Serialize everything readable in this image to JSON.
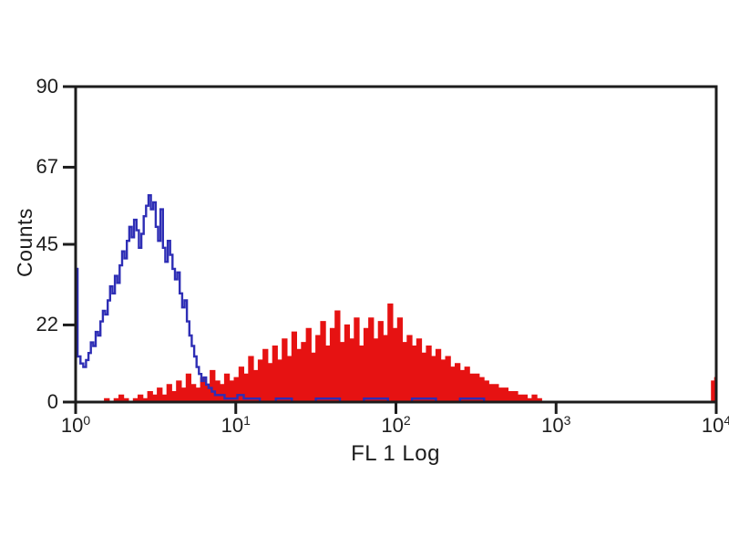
{
  "figure": {
    "ylabel": "Counts",
    "xlabel": "FL 1 Log",
    "background_color": "#ffffff",
    "axis_color": "#1c1c1c",
    "text_color": "#1c1c1c"
  },
  "chart_data": {
    "type": "area",
    "subtype": "flow-cytometry-overlay-histogram",
    "title": "",
    "xlabel": "FL 1 Log",
    "ylabel": "Counts",
    "x_scale": "log10",
    "xlim_log": [
      0,
      4
    ],
    "ylim": [
      0,
      90
    ],
    "x_tick_base": "10",
    "x_tick_exponents": [
      0,
      1,
      2,
      3,
      4
    ],
    "y_ticks": [
      0,
      22,
      45,
      67,
      90
    ],
    "grid": false,
    "legend": "none",
    "series": [
      {
        "name": "red-filled-histogram",
        "style": "filled",
        "color": "#e61212",
        "points_logx_counts": [
          [
            0.15,
            0
          ],
          [
            0.18,
            1
          ],
          [
            0.21,
            0
          ],
          [
            0.24,
            1
          ],
          [
            0.27,
            2
          ],
          [
            0.3,
            1
          ],
          [
            0.33,
            0
          ],
          [
            0.36,
            1
          ],
          [
            0.39,
            2
          ],
          [
            0.42,
            1
          ],
          [
            0.45,
            3
          ],
          [
            0.48,
            2
          ],
          [
            0.51,
            4
          ],
          [
            0.54,
            2
          ],
          [
            0.57,
            5
          ],
          [
            0.6,
            3
          ],
          [
            0.63,
            6
          ],
          [
            0.66,
            4
          ],
          [
            0.69,
            8
          ],
          [
            0.72,
            5
          ],
          [
            0.75,
            4
          ],
          [
            0.78,
            7
          ],
          [
            0.81,
            5
          ],
          [
            0.84,
            9
          ],
          [
            0.87,
            6
          ],
          [
            0.9,
            5
          ],
          [
            0.93,
            8
          ],
          [
            0.96,
            6
          ],
          [
            0.99,
            7
          ],
          [
            1.02,
            10
          ],
          [
            1.05,
            8
          ],
          [
            1.08,
            13
          ],
          [
            1.11,
            9
          ],
          [
            1.14,
            12
          ],
          [
            1.17,
            15
          ],
          [
            1.2,
            11
          ],
          [
            1.23,
            16
          ],
          [
            1.26,
            12
          ],
          [
            1.29,
            18
          ],
          [
            1.32,
            13
          ],
          [
            1.35,
            20
          ],
          [
            1.38,
            15
          ],
          [
            1.41,
            17
          ],
          [
            1.44,
            21
          ],
          [
            1.47,
            14
          ],
          [
            1.5,
            19
          ],
          [
            1.53,
            23
          ],
          [
            1.56,
            16
          ],
          [
            1.59,
            21
          ],
          [
            1.62,
            26
          ],
          [
            1.65,
            17
          ],
          [
            1.68,
            22
          ],
          [
            1.71,
            18
          ],
          [
            1.74,
            24
          ],
          [
            1.77,
            16
          ],
          [
            1.8,
            21
          ],
          [
            1.83,
            24
          ],
          [
            1.86,
            18
          ],
          [
            1.89,
            23
          ],
          [
            1.92,
            19
          ],
          [
            1.95,
            28
          ],
          [
            1.98,
            21
          ],
          [
            2.01,
            24
          ],
          [
            2.04,
            17
          ],
          [
            2.07,
            19
          ],
          [
            2.1,
            16
          ],
          [
            2.13,
            18
          ],
          [
            2.16,
            14
          ],
          [
            2.19,
            16
          ],
          [
            2.22,
            13
          ],
          [
            2.25,
            15
          ],
          [
            2.28,
            12
          ],
          [
            2.31,
            13
          ],
          [
            2.34,
            10
          ],
          [
            2.37,
            11
          ],
          [
            2.4,
            9
          ],
          [
            2.43,
            10
          ],
          [
            2.46,
            8
          ],
          [
            2.49,
            8
          ],
          [
            2.52,
            7
          ],
          [
            2.55,
            6
          ],
          [
            2.58,
            5
          ],
          [
            2.61,
            5
          ],
          [
            2.64,
            4
          ],
          [
            2.67,
            4
          ],
          [
            2.7,
            3
          ],
          [
            2.73,
            3
          ],
          [
            2.76,
            2
          ],
          [
            2.79,
            2
          ],
          [
            2.82,
            1
          ],
          [
            2.85,
            2
          ],
          [
            2.88,
            1
          ],
          [
            2.91,
            0
          ],
          [
            3.5,
            0
          ],
          [
            3.96,
            0
          ],
          [
            3.97,
            6
          ],
          [
            3.99,
            7
          ],
          [
            4.0,
            7
          ]
        ]
      },
      {
        "name": "blue-open-histogram",
        "style": "line",
        "color": "#2e2eb5",
        "points_logx_counts": [
          [
            0.0,
            38
          ],
          [
            0.012,
            13
          ],
          [
            0.03,
            11
          ],
          [
            0.048,
            10
          ],
          [
            0.065,
            12
          ],
          [
            0.08,
            14
          ],
          [
            0.095,
            17
          ],
          [
            0.11,
            16
          ],
          [
            0.125,
            20
          ],
          [
            0.14,
            19
          ],
          [
            0.155,
            23
          ],
          [
            0.17,
            26
          ],
          [
            0.185,
            25
          ],
          [
            0.2,
            29
          ],
          [
            0.215,
            33
          ],
          [
            0.23,
            31
          ],
          [
            0.245,
            36
          ],
          [
            0.26,
            34
          ],
          [
            0.275,
            39
          ],
          [
            0.29,
            43
          ],
          [
            0.305,
            41
          ],
          [
            0.32,
            46
          ],
          [
            0.335,
            50
          ],
          [
            0.35,
            47
          ],
          [
            0.365,
            52
          ],
          [
            0.38,
            49
          ],
          [
            0.395,
            44
          ],
          [
            0.41,
            48
          ],
          [
            0.425,
            53
          ],
          [
            0.44,
            56
          ],
          [
            0.455,
            59
          ],
          [
            0.47,
            55
          ],
          [
            0.485,
            57
          ],
          [
            0.5,
            50
          ],
          [
            0.515,
            46
          ],
          [
            0.53,
            55
          ],
          [
            0.545,
            44
          ],
          [
            0.56,
            40
          ],
          [
            0.575,
            46
          ],
          [
            0.59,
            42
          ],
          [
            0.605,
            38
          ],
          [
            0.62,
            35
          ],
          [
            0.635,
            37
          ],
          [
            0.65,
            31
          ],
          [
            0.665,
            27
          ],
          [
            0.68,
            29
          ],
          [
            0.695,
            23
          ],
          [
            0.71,
            19
          ],
          [
            0.725,
            16
          ],
          [
            0.74,
            13
          ],
          [
            0.755,
            10
          ],
          [
            0.77,
            8
          ],
          [
            0.785,
            6
          ],
          [
            0.8,
            7
          ],
          [
            0.815,
            5
          ],
          [
            0.83,
            4
          ],
          [
            0.85,
            3
          ],
          [
            0.87,
            2
          ],
          [
            0.9,
            2
          ],
          [
            0.93,
            1
          ],
          [
            0.97,
            1
          ],
          [
            1.01,
            2
          ],
          [
            1.05,
            1
          ],
          [
            1.1,
            1
          ],
          [
            1.15,
            0
          ],
          [
            1.25,
            1
          ],
          [
            1.35,
            0
          ],
          [
            1.5,
            1
          ],
          [
            1.65,
            0
          ],
          [
            1.8,
            1
          ],
          [
            1.95,
            0
          ],
          [
            2.1,
            1
          ],
          [
            2.25,
            0
          ],
          [
            2.4,
            1
          ],
          [
            2.55,
            0
          ],
          [
            2.65,
            0
          ]
        ]
      }
    ]
  }
}
